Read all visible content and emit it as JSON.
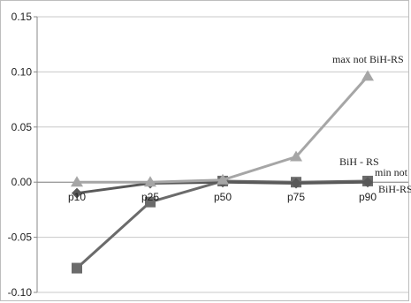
{
  "chart_data": {
    "type": "line",
    "title": "",
    "xlabel": "",
    "ylabel": "",
    "categories": [
      "p10",
      "p25",
      "p50",
      "p75",
      "p90"
    ],
    "ylim": [
      -0.1,
      0.15
    ],
    "y_ticks": [
      "0.15",
      "0.10",
      "0.05",
      "0.00",
      "-0.05",
      "-0.10"
    ],
    "y_tick_values": [
      0.15,
      0.1,
      0.05,
      0.0,
      -0.05,
      -0.1
    ],
    "grid": "horizontal",
    "legend": "none",
    "series": [
      {
        "name": "max not BiH-RS",
        "marker": "triangle",
        "color": "#a6a6a6",
        "values": [
          0.0,
          0.0,
          0.002,
          0.023,
          0.096
        ]
      },
      {
        "name": "BiH - RS",
        "marker": "diamond",
        "color": "#595959",
        "values": [
          -0.01,
          -0.001,
          0.0,
          -0.001,
          0.0
        ]
      },
      {
        "name": "min not BiH-RS",
        "marker": "square",
        "color": "#6b6b6b",
        "values": [
          -0.078,
          -0.018,
          0.001,
          0.0,
          0.001
        ]
      }
    ],
    "annotations": {
      "max_label": "max not BiH-RS",
      "bih_label": "BiH - RS",
      "min_label_line1": "min not",
      "min_label_line2": "BiH-RS"
    }
  }
}
